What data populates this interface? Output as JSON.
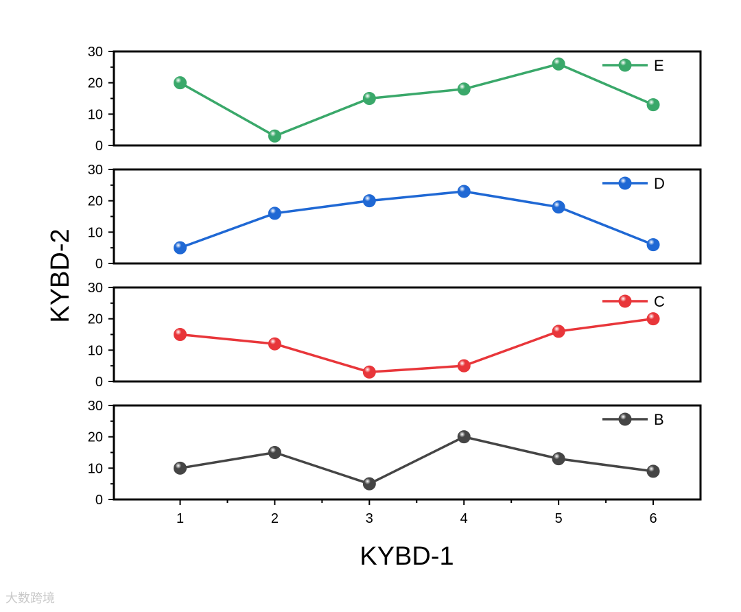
{
  "chart_data": {
    "type": "line",
    "layout": "stacked-panels",
    "x": [
      1,
      2,
      3,
      4,
      5,
      6
    ],
    "xlabel": "KYBD-1",
    "ylabel": "KYBD-2",
    "xlim": [
      0.3,
      6.5
    ],
    "ylim": [
      0,
      30
    ],
    "yticks": [
      0,
      10,
      20,
      30
    ],
    "xticks": [
      1,
      2,
      3,
      4,
      5,
      6
    ],
    "legend_position": "top-right in each panel",
    "grid": false,
    "series": [
      {
        "name": "E",
        "color": "#3aa86a",
        "values": [
          20,
          3,
          15,
          18,
          26,
          13
        ]
      },
      {
        "name": "D",
        "color": "#1f68d4",
        "values": [
          5,
          16,
          20,
          23,
          18,
          6
        ]
      },
      {
        "name": "C",
        "color": "#e8363a",
        "values": [
          15,
          12,
          3,
          5,
          16,
          20
        ]
      },
      {
        "name": "B",
        "color": "#454545",
        "values": [
          10,
          15,
          5,
          20,
          13,
          9
        ]
      }
    ]
  },
  "watermark": "大数跨境"
}
